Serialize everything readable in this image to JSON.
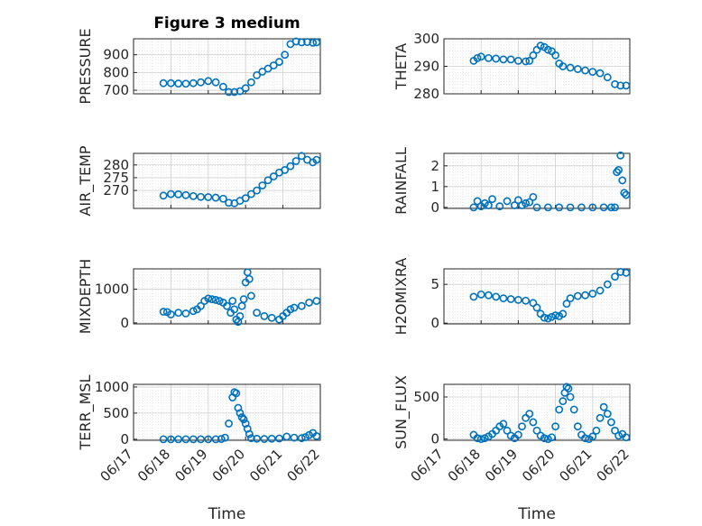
{
  "figure_title": "Figure 3 medium",
  "time_label": "Time",
  "time_ticks": [
    "06/17",
    "06/18",
    "06/19",
    "06/20",
    "06/21",
    "06/22"
  ],
  "marker_color": "#0072BD",
  "chart_data": [
    {
      "type": "scatter",
      "ylabel": "PRESSURE",
      "title": "Figure 3 medium",
      "yticks": [
        "700",
        "800",
        "900"
      ],
      "ylim": [
        680,
        990
      ],
      "x": [
        17.8,
        18.0,
        18.2,
        18.4,
        18.6,
        18.8,
        19.0,
        19.2,
        19.4,
        19.55,
        19.7,
        19.85,
        20.0,
        20.15,
        20.3,
        20.45,
        20.6,
        20.75,
        20.9,
        21.05,
        21.2,
        21.35,
        21.5,
        21.65,
        21.8,
        21.9
      ],
      "y": [
        740,
        740,
        738,
        737,
        740,
        745,
        752,
        745,
        720,
        690,
        690,
        695,
        712,
        745,
        785,
        805,
        822,
        840,
        860,
        900,
        960,
        975,
        970,
        972,
        968,
        970
      ]
    },
    {
      "type": "scatter",
      "ylabel": "THETA",
      "yticks": [
        "280",
        "290",
        "300"
      ],
      "ylim": [
        280,
        300
      ],
      "x": [
        17.8,
        17.9,
        18.0,
        18.2,
        18.4,
        18.6,
        18.8,
        19.0,
        19.2,
        19.3,
        19.4,
        19.5,
        19.6,
        19.7,
        19.8,
        19.9,
        20.0,
        20.1,
        20.2,
        20.4,
        20.6,
        20.8,
        21.0,
        21.2,
        21.4,
        21.6,
        21.75,
        21.9
      ],
      "y": [
        292,
        293,
        293.5,
        293,
        292.8,
        292.5,
        292.5,
        292,
        291.8,
        292,
        294,
        296,
        297.5,
        297,
        296,
        295.5,
        294,
        291,
        290,
        289.5,
        289,
        288.5,
        288,
        287.5,
        286,
        283.5,
        283,
        283
      ]
    },
    {
      "type": "scatter",
      "ylabel": "AIR_TEMP",
      "yticks": [
        "270",
        "275",
        "280"
      ],
      "ylim": [
        263,
        284.5
      ],
      "x": [
        17.8,
        18.0,
        18.2,
        18.4,
        18.6,
        18.8,
        19.0,
        19.2,
        19.4,
        19.55,
        19.7,
        19.85,
        20.0,
        20.15,
        20.3,
        20.45,
        20.6,
        20.75,
        20.9,
        21.05,
        21.2,
        21.35,
        21.5,
        21.65,
        21.8,
        21.9
      ],
      "y": [
        268,
        268.6,
        268.5,
        268.2,
        267.8,
        267.5,
        267.4,
        267.2,
        266.8,
        265.2,
        265,
        266,
        267,
        268.6,
        270,
        272,
        274,
        275.5,
        277,
        278,
        279.5,
        281.5,
        283.5,
        282,
        281,
        282
      ]
    },
    {
      "type": "scatter",
      "ylabel": "RAINFALL",
      "yticks": [
        "0",
        "1",
        "2"
      ],
      "ylim": [
        -0.05,
        2.6
      ],
      "x": [
        17.8,
        17.9,
        18.0,
        18.1,
        18.2,
        18.3,
        18.5,
        18.7,
        18.9,
        19.0,
        19.1,
        19.2,
        19.3,
        19.4,
        19.5,
        19.8,
        20.1,
        20.4,
        20.7,
        21.0,
        21.3,
        21.5,
        21.6,
        21.65,
        21.7,
        21.75,
        21.8,
        21.85,
        21.9
      ],
      "y": [
        0,
        0.3,
        0.05,
        0.2,
        0.1,
        0.4,
        0.05,
        0.3,
        0.1,
        0.35,
        0.1,
        0.2,
        0.25,
        0.5,
        0,
        0,
        0,
        0,
        0,
        0,
        0,
        0,
        0,
        1.7,
        1.8,
        2.5,
        1.3,
        0.7,
        0.6
      ]
    },
    {
      "type": "scatter",
      "ylabel": "MIXDEPTH",
      "yticks": [
        "0",
        "1000"
      ],
      "ylim": [
        -30,
        1600
      ],
      "x": [
        17.8,
        17.9,
        18.0,
        18.2,
        18.4,
        18.6,
        18.7,
        18.8,
        18.9,
        19.0,
        19.1,
        19.2,
        19.3,
        19.4,
        19.5,
        19.6,
        19.65,
        19.7,
        19.75,
        19.8,
        19.85,
        19.9,
        19.95,
        20.0,
        20.05,
        20.1,
        20.15,
        20.3,
        20.5,
        20.7,
        20.9,
        21.0,
        21.1,
        21.2,
        21.3,
        21.5,
        21.7,
        21.9
      ],
      "y": [
        330,
        320,
        250,
        300,
        280,
        350,
        400,
        500,
        650,
        720,
        700,
        680,
        650,
        600,
        500,
        300,
        650,
        400,
        100,
        30,
        200,
        500,
        700,
        1200,
        1500,
        1300,
        800,
        300,
        200,
        150,
        100,
        200,
        300,
        400,
        450,
        500,
        600,
        650
      ]
    },
    {
      "type": "scatter",
      "ylabel": "H2OMIXRA",
      "yticks": [
        "0",
        "5"
      ],
      "ylim": [
        -0.1,
        7
      ],
      "x": [
        17.8,
        18.0,
        18.2,
        18.4,
        18.6,
        18.8,
        19.0,
        19.2,
        19.4,
        19.5,
        19.6,
        19.7,
        19.8,
        19.9,
        20.0,
        20.1,
        20.2,
        20.3,
        20.4,
        20.6,
        20.8,
        21.0,
        21.2,
        21.4,
        21.6,
        21.75,
        21.9
      ],
      "y": [
        3.4,
        3.7,
        3.6,
        3.4,
        3.2,
        3.1,
        3.0,
        2.9,
        2.6,
        2.0,
        1.2,
        0.7,
        0.6,
        0.8,
        1.0,
        0.9,
        1.2,
        2.5,
        3.2,
        3.5,
        3.6,
        3.8,
        4.2,
        5.0,
        6.0,
        6.6,
        6.5
      ]
    },
    {
      "type": "scatter",
      "ylabel": "TERR_MSL",
      "yticks": [
        "0",
        "500",
        "1000"
      ],
      "ylim": [
        -20,
        1050
      ],
      "x": [
        17.8,
        18.0,
        18.2,
        18.4,
        18.6,
        18.8,
        19.0,
        19.2,
        19.35,
        19.45,
        19.55,
        19.65,
        19.7,
        19.75,
        19.8,
        19.85,
        19.9,
        19.95,
        20.0,
        20.05,
        20.1,
        20.15,
        20.3,
        20.5,
        20.7,
        20.9,
        21.1,
        21.3,
        21.5,
        21.6,
        21.7,
        21.8,
        21.9
      ],
      "y": [
        0,
        0,
        0,
        0,
        0,
        0,
        0,
        0,
        5,
        30,
        300,
        800,
        900,
        880,
        600,
        500,
        420,
        380,
        300,
        200,
        100,
        20,
        10,
        5,
        10,
        15,
        50,
        30,
        20,
        40,
        80,
        120,
        60
      ]
    },
    {
      "type": "scatter",
      "ylabel": "SUN_FLUX",
      "yticks": [
        "0",
        "500"
      ],
      "ylim": [
        -15,
        650
      ],
      "x": [
        17.8,
        17.9,
        18.0,
        18.1,
        18.2,
        18.3,
        18.4,
        18.5,
        18.6,
        18.7,
        18.8,
        18.9,
        19.0,
        19.1,
        19.2,
        19.3,
        19.4,
        19.5,
        19.6,
        19.7,
        19.8,
        19.9,
        20.0,
        20.1,
        20.2,
        20.25,
        20.3,
        20.35,
        20.4,
        20.5,
        20.6,
        20.7,
        20.8,
        20.9,
        21.0,
        21.1,
        21.2,
        21.3,
        21.4,
        21.5,
        21.6,
        21.7,
        21.8,
        21.9
      ],
      "y": [
        50,
        10,
        0,
        10,
        30,
        60,
        100,
        150,
        180,
        100,
        40,
        10,
        50,
        150,
        250,
        300,
        200,
        100,
        40,
        10,
        0,
        20,
        150,
        350,
        450,
        550,
        620,
        600,
        500,
        350,
        150,
        50,
        10,
        0,
        30,
        100,
        250,
        380,
        300,
        200,
        100,
        40,
        60,
        20
      ]
    }
  ]
}
